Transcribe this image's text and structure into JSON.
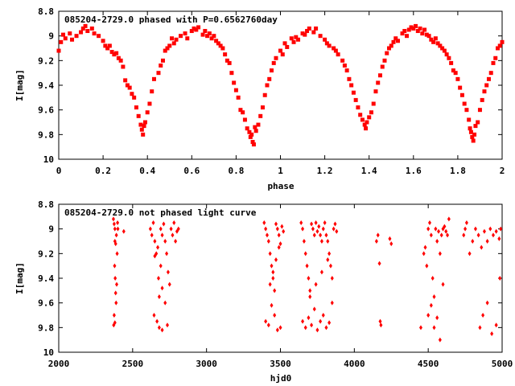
{
  "colors": {
    "points": "#ff0000",
    "axes": "#000000",
    "background": "#ffffff"
  },
  "chart_data": [
    {
      "type": "scatter",
      "title": "085204-2729.0 phased with P=0.6562760day",
      "xlabel": "phase",
      "ylabel": "I[mag]",
      "xlim": [
        0,
        2
      ],
      "ylim": [
        8.8,
        10
      ],
      "y_inverted": true,
      "xticks": [
        "0",
        "0.2",
        "0.4",
        "0.6",
        "0.8",
        "1",
        "1.2",
        "1.4",
        "1.6",
        "1.8",
        "2"
      ],
      "yticks": [
        "8.8",
        "9",
        "9.2",
        "9.4",
        "9.6",
        "9.8",
        "10"
      ],
      "grid": false,
      "marker": "filled-square",
      "points": [
        [
          0.0,
          9.12
        ],
        [
          0.01,
          9.05
        ],
        [
          0.02,
          8.99
        ],
        [
          0.03,
          9.02
        ],
        [
          0.05,
          8.98
        ],
        [
          0.06,
          9.03
        ],
        [
          0.08,
          9.0
        ],
        [
          0.1,
          8.97
        ],
        [
          0.11,
          8.94
        ],
        [
          0.12,
          8.92
        ],
        [
          0.13,
          8.96
        ],
        [
          0.15,
          8.94
        ],
        [
          0.16,
          8.98
        ],
        [
          0.18,
          9.0
        ],
        [
          0.2,
          9.04
        ],
        [
          0.21,
          9.08
        ],
        [
          0.22,
          9.1
        ],
        [
          0.23,
          9.08
        ],
        [
          0.24,
          9.13
        ],
        [
          0.25,
          9.15
        ],
        [
          0.26,
          9.14
        ],
        [
          0.27,
          9.18
        ],
        [
          0.28,
          9.2
        ],
        [
          0.29,
          9.25
        ],
        [
          0.3,
          9.36
        ],
        [
          0.31,
          9.4
        ],
        [
          0.32,
          9.42
        ],
        [
          0.33,
          9.47
        ],
        [
          0.34,
          9.5
        ],
        [
          0.35,
          9.58
        ],
        [
          0.36,
          9.65
        ],
        [
          0.37,
          9.72
        ],
        [
          0.375,
          9.76
        ],
        [
          0.38,
          9.8
        ],
        [
          0.385,
          9.73
        ],
        [
          0.39,
          9.7
        ],
        [
          0.4,
          9.62
        ],
        [
          0.41,
          9.55
        ],
        [
          0.42,
          9.45
        ],
        [
          0.43,
          9.35
        ],
        [
          0.45,
          9.3
        ],
        [
          0.46,
          9.24
        ],
        [
          0.47,
          9.2
        ],
        [
          0.48,
          9.12
        ],
        [
          0.49,
          9.1
        ],
        [
          0.5,
          9.08
        ],
        [
          0.51,
          9.02
        ],
        [
          0.52,
          9.06
        ],
        [
          0.53,
          9.03
        ],
        [
          0.55,
          9.0
        ],
        [
          0.57,
          8.98
        ],
        [
          0.58,
          9.02
        ],
        [
          0.6,
          8.96
        ],
        [
          0.61,
          8.94
        ],
        [
          0.62,
          8.95
        ],
        [
          0.63,
          8.93
        ],
        [
          0.65,
          8.99
        ],
        [
          0.66,
          8.96
        ],
        [
          0.67,
          9.0
        ],
        [
          0.68,
          8.98
        ],
        [
          0.69,
          9.02
        ],
        [
          0.7,
          9.0
        ],
        [
          0.71,
          9.04
        ],
        [
          0.72,
          9.06
        ],
        [
          0.73,
          9.08
        ],
        [
          0.74,
          9.1
        ],
        [
          0.75,
          9.15
        ],
        [
          0.76,
          9.2
        ],
        [
          0.77,
          9.22
        ],
        [
          0.78,
          9.3
        ],
        [
          0.79,
          9.38
        ],
        [
          0.8,
          9.44
        ],
        [
          0.81,
          9.5
        ],
        [
          0.82,
          9.6
        ],
        [
          0.83,
          9.62
        ],
        [
          0.84,
          9.68
        ],
        [
          0.85,
          9.75
        ],
        [
          0.86,
          9.78
        ],
        [
          0.865,
          9.82
        ],
        [
          0.87,
          9.8
        ],
        [
          0.875,
          9.86
        ],
        [
          0.88,
          9.88
        ],
        [
          0.885,
          9.74
        ],
        [
          0.89,
          9.77
        ],
        [
          0.9,
          9.72
        ],
        [
          0.91,
          9.65
        ],
        [
          0.92,
          9.58
        ],
        [
          0.93,
          9.48
        ],
        [
          0.94,
          9.4
        ],
        [
          0.95,
          9.35
        ],
        [
          0.96,
          9.28
        ],
        [
          0.97,
          9.22
        ],
        [
          0.98,
          9.18
        ],
        [
          1.0,
          9.12
        ],
        [
          1.01,
          9.15
        ],
        [
          1.02,
          9.06
        ],
        [
          1.03,
          9.09
        ],
        [
          1.05,
          9.02
        ],
        [
          1.06,
          9.05
        ],
        [
          1.07,
          9.01
        ],
        [
          1.08,
          9.03
        ],
        [
          1.1,
          8.98
        ],
        [
          1.11,
          8.99
        ],
        [
          1.12,
          8.96
        ],
        [
          1.13,
          8.94
        ],
        [
          1.15,
          8.97
        ],
        [
          1.16,
          8.94
        ],
        [
          1.18,
          9.0
        ],
        [
          1.2,
          9.03
        ],
        [
          1.21,
          9.06
        ],
        [
          1.22,
          9.08
        ],
        [
          1.24,
          9.1
        ],
        [
          1.25,
          9.12
        ],
        [
          1.26,
          9.15
        ],
        [
          1.28,
          9.2
        ],
        [
          1.29,
          9.24
        ],
        [
          1.3,
          9.28
        ],
        [
          1.31,
          9.35
        ],
        [
          1.32,
          9.4
        ],
        [
          1.33,
          9.46
        ],
        [
          1.34,
          9.52
        ],
        [
          1.35,
          9.58
        ],
        [
          1.36,
          9.64
        ],
        [
          1.37,
          9.68
        ],
        [
          1.38,
          9.72
        ],
        [
          1.385,
          9.75
        ],
        [
          1.39,
          9.7
        ],
        [
          1.4,
          9.66
        ],
        [
          1.41,
          9.62
        ],
        [
          1.42,
          9.55
        ],
        [
          1.43,
          9.45
        ],
        [
          1.44,
          9.38
        ],
        [
          1.45,
          9.32
        ],
        [
          1.46,
          9.25
        ],
        [
          1.47,
          9.2
        ],
        [
          1.48,
          9.14
        ],
        [
          1.49,
          9.1
        ],
        [
          1.5,
          9.08
        ],
        [
          1.51,
          9.05
        ],
        [
          1.52,
          9.02
        ],
        [
          1.53,
          9.04
        ],
        [
          1.55,
          8.98
        ],
        [
          1.56,
          8.96
        ],
        [
          1.57,
          9.0
        ],
        [
          1.58,
          8.95
        ],
        [
          1.59,
          8.93
        ],
        [
          1.6,
          8.94
        ],
        [
          1.61,
          8.92
        ],
        [
          1.62,
          8.96
        ],
        [
          1.63,
          8.94
        ],
        [
          1.64,
          8.98
        ],
        [
          1.65,
          8.95
        ],
        [
          1.66,
          8.99
        ],
        [
          1.67,
          9.0
        ],
        [
          1.68,
          9.03
        ],
        [
          1.69,
          9.05
        ],
        [
          1.7,
          9.02
        ],
        [
          1.71,
          9.06
        ],
        [
          1.72,
          9.08
        ],
        [
          1.73,
          9.1
        ],
        [
          1.74,
          9.12
        ],
        [
          1.75,
          9.15
        ],
        [
          1.76,
          9.18
        ],
        [
          1.77,
          9.22
        ],
        [
          1.78,
          9.28
        ],
        [
          1.79,
          9.3
        ],
        [
          1.8,
          9.35
        ],
        [
          1.81,
          9.42
        ],
        [
          1.82,
          9.48
        ],
        [
          1.83,
          9.55
        ],
        [
          1.84,
          9.6
        ],
        [
          1.85,
          9.68
        ],
        [
          1.855,
          9.75
        ],
        [
          1.86,
          9.78
        ],
        [
          1.865,
          9.82
        ],
        [
          1.87,
          9.85
        ],
        [
          1.875,
          9.8
        ],
        [
          1.88,
          9.73
        ],
        [
          1.89,
          9.7
        ],
        [
          1.9,
          9.6
        ],
        [
          1.91,
          9.52
        ],
        [
          1.92,
          9.45
        ],
        [
          1.93,
          9.4
        ],
        [
          1.94,
          9.35
        ],
        [
          1.95,
          9.3
        ],
        [
          1.96,
          9.22
        ],
        [
          1.97,
          9.18
        ],
        [
          1.98,
          9.1
        ],
        [
          1.99,
          9.08
        ],
        [
          2.0,
          9.05
        ]
      ]
    },
    {
      "type": "scatter",
      "title": "085204-2729.0 not phased light curve",
      "xlabel": "hjd0",
      "ylabel": "I[mag]",
      "xlim": [
        2000,
        5000
      ],
      "ylim": [
        8.8,
        10
      ],
      "y_inverted": true,
      "xticks": [
        "2000",
        "2500",
        "3000",
        "3500",
        "4000",
        "4500",
        "5000"
      ],
      "yticks": [
        "8.8",
        "9",
        "9.2",
        "9.4",
        "9.6",
        "9.8",
        "10"
      ],
      "grid": false,
      "marker": "diamond",
      "points": [
        [
          2370,
          8.92
        ],
        [
          2375,
          8.96
        ],
        [
          2380,
          9.0
        ],
        [
          2378,
          9.3
        ],
        [
          2382,
          9.4
        ],
        [
          2385,
          9.52
        ],
        [
          2388,
          9.6
        ],
        [
          2375,
          9.7
        ],
        [
          2380,
          9.76
        ],
        [
          2372,
          9.78
        ],
        [
          2390,
          9.05
        ],
        [
          2395,
          9.2
        ],
        [
          2392,
          9.45
        ],
        [
          2398,
          8.95
        ],
        [
          2400,
          9.0
        ],
        [
          2380,
          9.1
        ],
        [
          2385,
          9.12
        ],
        [
          2440,
          9.02
        ],
        [
          2620,
          9.0
        ],
        [
          2630,
          9.05
        ],
        [
          2640,
          8.95
        ],
        [
          2650,
          9.1
        ],
        [
          2660,
          9.2
        ],
        [
          2670,
          9.15
        ],
        [
          2675,
          9.4
        ],
        [
          2680,
          9.55
        ],
        [
          2690,
          9.0
        ],
        [
          2700,
          9.05
        ],
        [
          2710,
          8.96
        ],
        [
          2720,
          9.1
        ],
        [
          2730,
          9.2
        ],
        [
          2740,
          9.35
        ],
        [
          2750,
          9.45
        ],
        [
          2760,
          9.0
        ],
        [
          2770,
          9.05
        ],
        [
          2780,
          8.95
        ],
        [
          2790,
          9.1
        ],
        [
          2800,
          9.02
        ],
        [
          2810,
          9.0
        ],
        [
          2645,
          9.7
        ],
        [
          2665,
          9.75
        ],
        [
          2680,
          9.8
        ],
        [
          2700,
          9.82
        ],
        [
          2720,
          9.6
        ],
        [
          2735,
          9.78
        ],
        [
          2650,
          9.22
        ],
        [
          2690,
          9.3
        ],
        [
          2700,
          9.48
        ],
        [
          3390,
          8.95
        ],
        [
          3400,
          9.0
        ],
        [
          3410,
          9.05
        ],
        [
          3420,
          9.1
        ],
        [
          3430,
          9.2
        ],
        [
          3440,
          9.3
        ],
        [
          3450,
          9.4
        ],
        [
          3460,
          9.5
        ],
        [
          3470,
          8.96
        ],
        [
          3480,
          9.0
        ],
        [
          3490,
          9.05
        ],
        [
          3500,
          9.12
        ],
        [
          3510,
          8.98
        ],
        [
          3520,
          9.02
        ],
        [
          3400,
          9.75
        ],
        [
          3420,
          9.78
        ],
        [
          3440,
          9.62
        ],
        [
          3460,
          9.7
        ],
        [
          3480,
          9.82
        ],
        [
          3500,
          9.8
        ],
        [
          3430,
          9.45
        ],
        [
          3450,
          9.35
        ],
        [
          3470,
          9.25
        ],
        [
          3490,
          9.15
        ],
        [
          3640,
          8.95
        ],
        [
          3650,
          9.0
        ],
        [
          3660,
          9.1
        ],
        [
          3670,
          9.2
        ],
        [
          3680,
          9.3
        ],
        [
          3690,
          9.4
        ],
        [
          3700,
          9.5
        ],
        [
          3710,
          8.96
        ],
        [
          3720,
          9.0
        ],
        [
          3730,
          9.05
        ],
        [
          3740,
          8.95
        ],
        [
          3750,
          9.02
        ],
        [
          3760,
          8.98
        ],
        [
          3770,
          9.05
        ],
        [
          3780,
          9.1
        ],
        [
          3790,
          9.0
        ],
        [
          3800,
          8.95
        ],
        [
          3810,
          9.05
        ],
        [
          3820,
          9.1
        ],
        [
          3830,
          9.2
        ],
        [
          3840,
          9.3
        ],
        [
          3850,
          9.4
        ],
        [
          3860,
          9.0
        ],
        [
          3870,
          8.96
        ],
        [
          3880,
          9.02
        ],
        [
          3650,
          9.75
        ],
        [
          3670,
          9.8
        ],
        [
          3690,
          9.72
        ],
        [
          3710,
          9.78
        ],
        [
          3730,
          9.65
        ],
        [
          3750,
          9.82
        ],
        [
          3770,
          9.75
        ],
        [
          3790,
          9.7
        ],
        [
          3810,
          9.8
        ],
        [
          3830,
          9.76
        ],
        [
          3850,
          9.6
        ],
        [
          3700,
          9.55
        ],
        [
          3740,
          9.45
        ],
        [
          3780,
          9.35
        ],
        [
          3820,
          9.25
        ],
        [
          4150,
          9.1
        ],
        [
          4160,
          9.05
        ],
        [
          4170,
          9.28
        ],
        [
          4175,
          9.75
        ],
        [
          4180,
          9.78
        ],
        [
          4240,
          9.08
        ],
        [
          4250,
          9.12
        ],
        [
          4450,
          9.8
        ],
        [
          4470,
          9.2
        ],
        [
          4480,
          9.15
        ],
        [
          4490,
          9.3
        ],
        [
          4500,
          9.0
        ],
        [
          4510,
          8.95
        ],
        [
          4520,
          9.05
        ],
        [
          4530,
          9.4
        ],
        [
          4540,
          9.55
        ],
        [
          4550,
          9.0
        ],
        [
          4560,
          9.1
        ],
        [
          4570,
          9.02
        ],
        [
          4580,
          9.2
        ],
        [
          4590,
          9.05
        ],
        [
          4600,
          9.0
        ],
        [
          4610,
          8.98
        ],
        [
          4620,
          9.02
        ],
        [
          4630,
          9.05
        ],
        [
          4640,
          8.92
        ],
        [
          4520,
          9.62
        ],
        [
          4540,
          9.8
        ],
        [
          4560,
          9.72
        ],
        [
          4580,
          9.9
        ],
        [
          4500,
          9.7
        ],
        [
          4600,
          9.45
        ],
        [
          4740,
          9.05
        ],
        [
          4750,
          9.0
        ],
        [
          4760,
          8.95
        ],
        [
          4780,
          9.2
        ],
        [
          4800,
          9.1
        ],
        [
          4820,
          9.0
        ],
        [
          4840,
          9.05
        ],
        [
          4860,
          9.15
        ],
        [
          4880,
          9.02
        ],
        [
          4900,
          9.1
        ],
        [
          4920,
          9.0
        ],
        [
          4940,
          9.05
        ],
        [
          4960,
          9.02
        ],
        [
          4980,
          9.08
        ],
        [
          4990,
          9.0
        ],
        [
          4850,
          9.8
        ],
        [
          4870,
          9.7
        ],
        [
          4900,
          9.6
        ],
        [
          4930,
          9.85
        ],
        [
          4960,
          9.78
        ],
        [
          4985,
          9.4
        ]
      ]
    }
  ]
}
